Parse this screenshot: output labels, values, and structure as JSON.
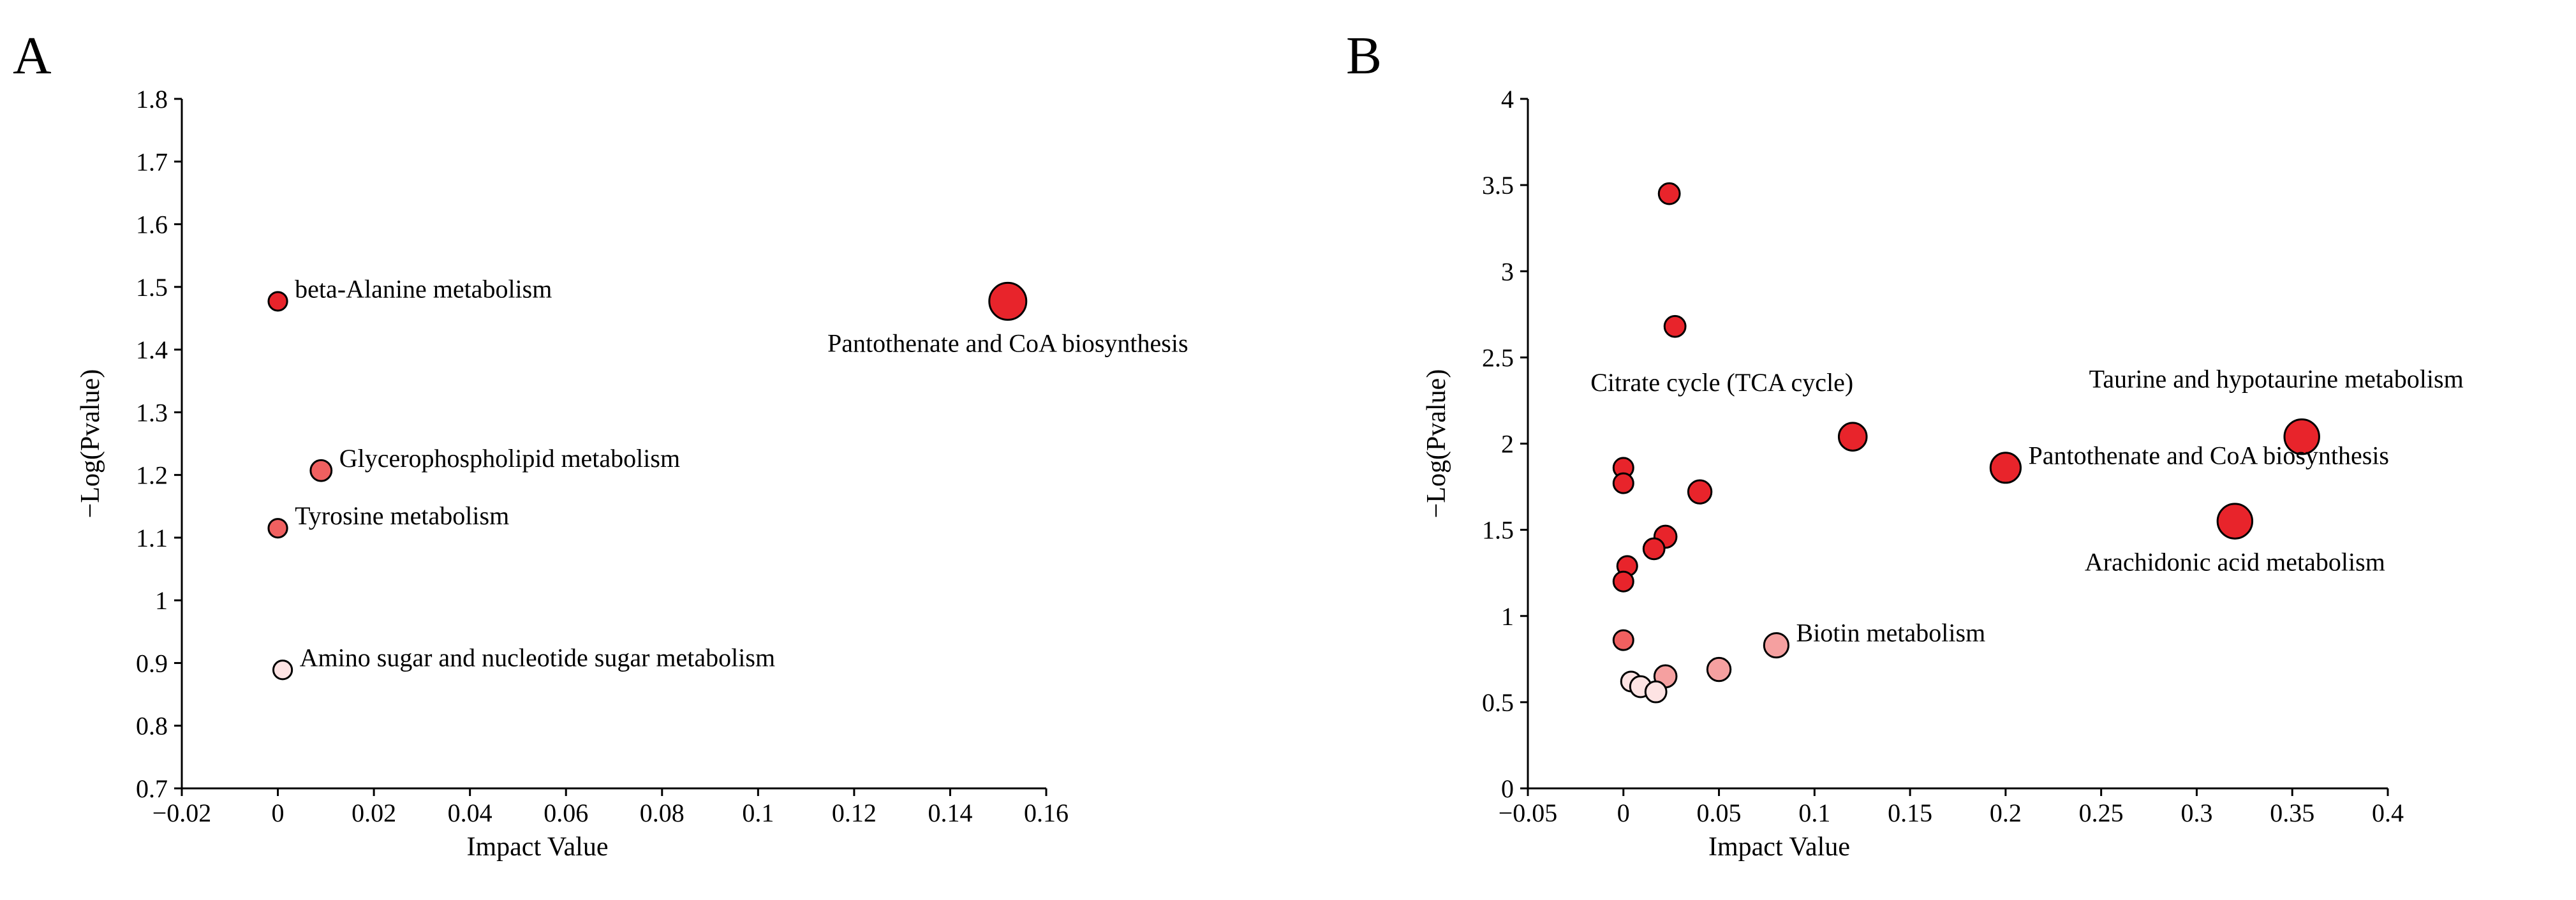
{
  "panels": [
    {
      "label": "A",
      "xlabel": "Impact Value",
      "ylabel": "−Log(Pvalue)"
    },
    {
      "label": "B",
      "xlabel": "Impact Value",
      "ylabel": "−Log(Pvalue)"
    }
  ],
  "colors": {
    "strong": "#e8242b",
    "medium": "#f06060",
    "light": "#f5a0a0",
    "pale": "#fde3e3",
    "axis": "#000000"
  },
  "chart_data": [
    {
      "type": "scatter",
      "panel": "A",
      "title": "",
      "xlabel": "Impact Value",
      "ylabel": "−Log(Pvalue)",
      "xlim": [
        -0.02,
        0.16
      ],
      "ylim": [
        0.7,
        1.8
      ],
      "xticks": [
        -0.02,
        0,
        0.02,
        0.04,
        0.06,
        0.08,
        0.1,
        0.12,
        0.14,
        0.16
      ],
      "xtick_labels": [
        "−0.02",
        "0",
        "0.02",
        "0.04",
        "0.06",
        "0.08",
        "0.1",
        "0.12",
        "0.14",
        "0.16"
      ],
      "yticks": [
        0.7,
        0.8,
        0.9,
        1,
        1.1,
        1.2,
        1.3,
        1.4,
        1.5,
        1.6,
        1.7,
        1.8
      ],
      "ytick_labels": [
        "0.7",
        "0.8",
        "0.9",
        "1",
        "1.1",
        "1.2",
        "1.3",
        "1.4",
        "1.5",
        "1.6",
        "1.7",
        "1.8"
      ],
      "points": [
        {
          "x": 0.0,
          "y": 1.477,
          "size": 0.2,
          "color": "strong",
          "label": "beta-Alanine metabolism",
          "label_pos": "right"
        },
        {
          "x": 0.152,
          "y": 1.477,
          "size": 1.0,
          "color": "strong",
          "label": "Pantothenate and CoA biosynthesis",
          "label_pos": "below"
        },
        {
          "x": 0.009,
          "y": 1.207,
          "size": 0.3,
          "color": "medium",
          "label": "Glycerophospholipid metabolism",
          "label_pos": "right"
        },
        {
          "x": 0.0,
          "y": 1.115,
          "size": 0.2,
          "color": "medium",
          "label": "Tyrosine metabolism",
          "label_pos": "right"
        },
        {
          "x": 0.001,
          "y": 0.889,
          "size": 0.2,
          "color": "pale",
          "label": "Amino sugar and nucleotide sugar metabolism",
          "label_pos": "right"
        }
      ]
    },
    {
      "type": "scatter",
      "panel": "B",
      "title": "",
      "xlabel": "Impact Value",
      "ylabel": "−Log(Pvalue)",
      "xlim": [
        -0.05,
        0.4
      ],
      "ylim": [
        0,
        4
      ],
      "xticks": [
        -0.05,
        0,
        0.05,
        0.1,
        0.15,
        0.2,
        0.25,
        0.3,
        0.35,
        0.4
      ],
      "xtick_labels": [
        "−0.05",
        "0",
        "0.05",
        "0.1",
        "0.15",
        "0.2",
        "0.25",
        "0.3",
        "0.35",
        "0.4"
      ],
      "yticks": [
        0,
        0.5,
        1,
        1.5,
        2,
        2.5,
        3,
        3.5,
        4
      ],
      "ytick_labels": [
        "0",
        "0.5",
        "1",
        "1.5",
        "2",
        "2.5",
        "3",
        "3.5",
        "4"
      ],
      "points": [
        {
          "x": 0.024,
          "y": 3.45,
          "size": 0.3,
          "color": "strong",
          "label": ""
        },
        {
          "x": 0.027,
          "y": 2.68,
          "size": 0.3,
          "color": "strong",
          "label": ""
        },
        {
          "x": 0.12,
          "y": 2.04,
          "size": 0.6,
          "color": "strong",
          "label": "Citrate cycle (TCA cycle)",
          "label_pos": "above-left"
        },
        {
          "x": 0.355,
          "y": 2.04,
          "size": 0.9,
          "color": "strong",
          "label": "Taurine and hypotaurine metabolism",
          "label_pos": "above"
        },
        {
          "x": 0.2,
          "y": 1.86,
          "size": 0.7,
          "color": "strong",
          "label": "Pantothenate and CoA biosynthesis",
          "label_pos": "right"
        },
        {
          "x": 0.32,
          "y": 1.55,
          "size": 0.9,
          "color": "strong",
          "label": "Arachidonic acid metabolism",
          "label_pos": "below"
        },
        {
          "x": 0.0,
          "y": 1.86,
          "size": 0.25,
          "color": "strong",
          "label": ""
        },
        {
          "x": 0.0,
          "y": 1.77,
          "size": 0.25,
          "color": "strong",
          "label": ""
        },
        {
          "x": 0.04,
          "y": 1.72,
          "size": 0.4,
          "color": "strong",
          "label": ""
        },
        {
          "x": 0.022,
          "y": 1.46,
          "size": 0.35,
          "color": "strong",
          "label": ""
        },
        {
          "x": 0.016,
          "y": 1.39,
          "size": 0.3,
          "color": "strong",
          "label": ""
        },
        {
          "x": 0.002,
          "y": 1.29,
          "size": 0.25,
          "color": "strong",
          "label": ""
        },
        {
          "x": 0.0,
          "y": 1.2,
          "size": 0.25,
          "color": "strong",
          "label": ""
        },
        {
          "x": 0.0,
          "y": 0.86,
          "size": 0.25,
          "color": "medium",
          "label": ""
        },
        {
          "x": 0.08,
          "y": 0.83,
          "size": 0.45,
          "color": "light",
          "label": "Biotin metabolism",
          "label_pos": "right"
        },
        {
          "x": 0.05,
          "y": 0.69,
          "size": 0.4,
          "color": "light",
          "label": ""
        },
        {
          "x": 0.022,
          "y": 0.65,
          "size": 0.35,
          "color": "light",
          "label": ""
        },
        {
          "x": 0.004,
          "y": 0.62,
          "size": 0.25,
          "color": "pale",
          "label": ""
        },
        {
          "x": 0.009,
          "y": 0.59,
          "size": 0.3,
          "color": "pale",
          "label": ""
        },
        {
          "x": 0.017,
          "y": 0.56,
          "size": 0.3,
          "color": "pale",
          "label": ""
        }
      ]
    }
  ]
}
